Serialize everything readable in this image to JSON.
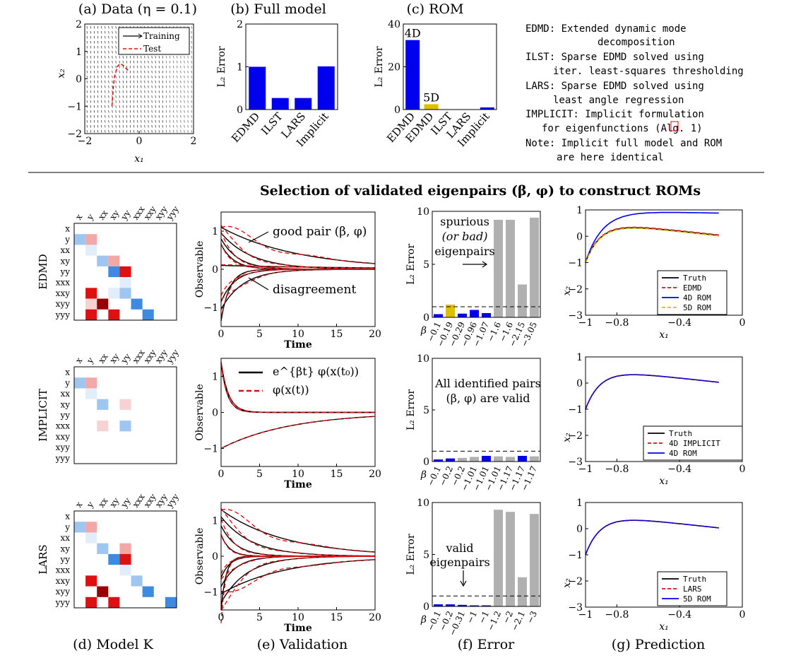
{
  "colors": {
    "blue": "#0000ee",
    "gold": "#dcc000",
    "gray": "#b0b0b0",
    "red": "#dd1111",
    "darkred": "#990000",
    "lightblue": "#9fc6f0",
    "medblue": "#3d8be0",
    "lightred": "#f3a8a8",
    "paleblue": "#e2edfb",
    "palered": "#f7d2d2"
  },
  "top_titles": {
    "a": "(a) Data (η = 0.1)",
    "b": "(b) Full model",
    "c": "(c) ROM"
  },
  "bottom_labels": {
    "d": "(d) Model K",
    "e": "(e) Validation",
    "f": "(f) Error",
    "g": "(g) Prediction"
  },
  "main_title": "Selection of validated eigenpairs (β, φ) to construct ROMs",
  "row_labels": [
    "EDMD",
    "IMPLICIT",
    "LARS"
  ],
  "common_axis": {
    "time": "Time",
    "observable": "Observable",
    "l2_error": "L₂ Error",
    "beta": "β",
    "x1": "x₁",
    "x2": "x₂"
  },
  "legend_text": [
    "EDMD: Extended dynamic mode",
    "decomposition",
    "ILST: Sparse EDMD solved using",
    "iter. least-squares thresholding",
    "LARS: Sparse EDMD solved using",
    "least angle regression",
    "IMPLICIT: Implicit formulation",
    "for eigenfunctions (Alg. 1)",
    "Note: Implicit full model and ROM",
    "are here identical"
  ],
  "chart_data": [
    {
      "id": "a",
      "type": "scatter",
      "title": "(a) Data (η = 0.1)",
      "xlabel": "x₁",
      "ylabel": "x₂",
      "xlim": [
        -2,
        2
      ],
      "ylim": [
        -2,
        2
      ],
      "xticks": [
        "−2",
        "0",
        "2"
      ],
      "yticks": [
        "−2",
        "−1",
        "0",
        "1",
        "2"
      ],
      "legend": [
        "Training",
        "Test"
      ],
      "test_curve": {
        "x": [
          -1.0,
          -0.95,
          -0.9,
          -0.8,
          -0.7,
          -0.6,
          -0.5,
          -0.4
        ],
        "y": [
          -1.0,
          -0.3,
          0.1,
          0.45,
          0.55,
          0.5,
          0.4,
          0.3
        ]
      }
    },
    {
      "id": "b",
      "type": "bar",
      "title": "(b) Full model",
      "ylabel": "L₂ Error",
      "ylim": [
        0,
        2
      ],
      "yticks": [
        "0",
        "1",
        "2"
      ],
      "categories": [
        "EDMD",
        "ILST",
        "LARS",
        "Implicit"
      ],
      "values": [
        1.0,
        0.27,
        0.27,
        1.01
      ]
    },
    {
      "id": "c",
      "type": "bar",
      "title": "(c) ROM",
      "ylabel": "L₂ Error",
      "ylim": [
        0,
        40
      ],
      "yticks": [
        "0",
        "20",
        "40"
      ],
      "categories": [
        "EDMD",
        "EDMD",
        "ILST",
        "LARS",
        "Implicit"
      ],
      "values": [
        32.5,
        2.5,
        0,
        0,
        1.0
      ],
      "bar_labels": [
        "4D",
        "5D",
        "",
        "",
        ""
      ]
    },
    {
      "id": "d1",
      "type": "heatmap",
      "rows": [
        "x",
        "y",
        "xx",
        "xy",
        "yy",
        "xxx",
        "xxy",
        "xyy",
        "yyy"
      ],
      "cols": [
        "x",
        "y",
        "xx",
        "xy",
        "yy",
        "xxx",
        "xxy",
        "xyy",
        "yyy"
      ],
      "cells": [
        [
          1,
          0,
          "lightblue"
        ],
        [
          1,
          1,
          "lightred"
        ],
        [
          2,
          1,
          "paleblue"
        ],
        [
          3,
          2,
          "lightblue"
        ],
        [
          3,
          3,
          "lightred"
        ],
        [
          4,
          3,
          "medblue"
        ],
        [
          4,
          4,
          "red"
        ],
        [
          5,
          4,
          "paleblue"
        ],
        [
          6,
          1,
          "red"
        ],
        [
          6,
          3,
          "paleblue"
        ],
        [
          6,
          4,
          "lightblue"
        ],
        [
          7,
          1,
          "palered"
        ],
        [
          7,
          2,
          "darkred"
        ],
        [
          7,
          5,
          "medblue"
        ],
        [
          8,
          1,
          "red"
        ],
        [
          8,
          3,
          "red"
        ],
        [
          8,
          6,
          "medblue"
        ]
      ]
    },
    {
      "id": "d2",
      "type": "heatmap",
      "rows": [
        "x",
        "y",
        "xx",
        "xy",
        "yy",
        "xxx",
        "xxy",
        "xyy",
        "yyy"
      ],
      "cols": [
        "x",
        "y",
        "xx",
        "xy",
        "yy",
        "xxx",
        "xxy",
        "xyy",
        "yyy"
      ],
      "cells": [
        [
          1,
          0,
          "lightblue"
        ],
        [
          1,
          1,
          "lightred"
        ],
        [
          2,
          1,
          "paleblue"
        ],
        [
          3,
          2,
          "lightblue"
        ],
        [
          3,
          4,
          "palered"
        ],
        [
          5,
          2,
          "palered"
        ],
        [
          5,
          4,
          "lightblue"
        ]
      ]
    },
    {
      "id": "d3",
      "type": "heatmap",
      "rows": [
        "x",
        "y",
        "xx",
        "xy",
        "yy",
        "xxx",
        "xxy",
        "xyy",
        "yyy"
      ],
      "cols": [
        "x",
        "y",
        "xx",
        "xy",
        "yy",
        "xxx",
        "xxy",
        "xyy",
        "yyy"
      ],
      "cells": [
        [
          1,
          0,
          "lightblue"
        ],
        [
          1,
          1,
          "lightred"
        ],
        [
          2,
          1,
          "paleblue"
        ],
        [
          3,
          2,
          "lightblue"
        ],
        [
          3,
          4,
          "lightred"
        ],
        [
          4,
          3,
          "medblue"
        ],
        [
          4,
          4,
          "red"
        ],
        [
          5,
          4,
          "paleblue"
        ],
        [
          6,
          1,
          "red"
        ],
        [
          6,
          5,
          "lightblue"
        ],
        [
          7,
          2,
          "darkred"
        ],
        [
          7,
          6,
          "medblue"
        ],
        [
          8,
          1,
          "red"
        ],
        [
          8,
          3,
          "red"
        ],
        [
          8,
          8,
          "medblue"
        ]
      ]
    },
    {
      "id": "e1",
      "type": "line",
      "xlabel": "Time",
      "ylabel": "Observable",
      "xlim": [
        0,
        20
      ],
      "ylim": [
        -1.5,
        1.5
      ],
      "xticks": [
        "0",
        "5",
        "10",
        "15",
        "20"
      ],
      "yticks": [
        "−1",
        "0",
        "1"
      ],
      "annotations": [
        "good pair (β, φ)",
        "disagreement"
      ]
    },
    {
      "id": "e2",
      "type": "line",
      "xlabel": "Time",
      "ylabel": "Observable",
      "xlim": [
        0,
        20
      ],
      "ylim": [
        -1.5,
        1.5
      ],
      "xticks": [
        "0",
        "5",
        "10",
        "15",
        "20"
      ],
      "yticks": [
        "−1",
        "0",
        "1"
      ],
      "legend": [
        "e^{βt} φ(x(t₀))",
        "φ(x(t))"
      ]
    },
    {
      "id": "e3",
      "type": "line",
      "xlabel": "Time",
      "ylabel": "Observable",
      "xlim": [
        0,
        20
      ],
      "ylim": [
        -1.5,
        1.5
      ],
      "xticks": [
        "0",
        "5",
        "10",
        "15",
        "20"
      ],
      "yticks": [
        "−1",
        "0",
        "1"
      ]
    },
    {
      "id": "f1",
      "type": "bar",
      "ylabel": "L₂ Error",
      "ylim": [
        0,
        10
      ],
      "yticks": [
        "0",
        "5",
        "10"
      ],
      "threshold": 1.0,
      "categories": [
        "−0.1",
        "−0.19",
        "−0.29",
        "−0.96",
        "−1.07",
        "−1.6",
        "−1.6",
        "−2.15",
        "−3.05"
      ],
      "values": [
        0.3,
        1.2,
        0.35,
        0.7,
        0.4,
        9.2,
        9.2,
        3.1,
        9.4
      ],
      "bar_colors": [
        "blue",
        "gold",
        "blue",
        "blue",
        "blue",
        "gray",
        "gray",
        "gray",
        "gray"
      ],
      "annotation": [
        "spurious",
        "(or bad)",
        "eigenpairs"
      ]
    },
    {
      "id": "f2",
      "type": "bar",
      "ylabel": "L₂ Error",
      "ylim": [
        0,
        10
      ],
      "yticks": [
        "0",
        "5",
        "10"
      ],
      "threshold": 1.0,
      "categories": [
        "−0.1",
        "−0.2",
        "−0.2",
        "−1.01",
        "−1.01",
        "−1.01",
        "−1.17",
        "−1.17",
        "−1.17"
      ],
      "values": [
        0.2,
        0.3,
        0.35,
        0.45,
        0.55,
        0.5,
        0.45,
        0.55,
        0.5
      ],
      "bar_colors": [
        "blue",
        "blue",
        "gray",
        "gray",
        "blue",
        "gray",
        "gray",
        "blue",
        "gray"
      ],
      "annotation": [
        "All identified pairs",
        "(β, φ) are valid"
      ]
    },
    {
      "id": "f3",
      "type": "bar",
      "ylabel": "L₂ Error",
      "ylim": [
        0,
        10
      ],
      "yticks": [
        "0",
        "5",
        "10"
      ],
      "threshold": 1.0,
      "categories": [
        "−0.1",
        "−0.2",
        "−0.31",
        "−1",
        "−1",
        "−1.2",
        "−2",
        "−2.1",
        "−3"
      ],
      "values": [
        0.2,
        0.2,
        0.15,
        0.1,
        0.1,
        9.3,
        9.1,
        2.8,
        8.9
      ],
      "bar_colors": [
        "blue",
        "blue",
        "blue",
        "blue",
        "blue",
        "gray",
        "gray",
        "gray",
        "gray"
      ],
      "annotation": [
        "valid",
        "eigenpairs"
      ]
    },
    {
      "id": "g1",
      "type": "line",
      "xlabel": "x₁",
      "ylabel": "x₂",
      "xlim": [
        -1,
        0
      ],
      "ylim": [
        -3,
        1
      ],
      "xticks": [
        "−1",
        "−0.8",
        "−0.4",
        "0"
      ],
      "yticks": [
        "−3",
        "−2",
        "−1",
        "0",
        "1"
      ],
      "legend": [
        "Truth",
        "EDMD",
        "4D ROM",
        "5D ROM"
      ]
    },
    {
      "id": "g2",
      "type": "line",
      "xlabel": "x₁",
      "ylabel": "x₂",
      "xlim": [
        -1,
        0
      ],
      "ylim": [
        -3,
        1
      ],
      "xticks": [
        "−1",
        "−0.8",
        "−0.4",
        "0"
      ],
      "yticks": [
        "−3",
        "−2",
        "−1",
        "0",
        "1"
      ],
      "legend": [
        "Truth",
        "4D IMPLICIT",
        "4D ROM"
      ]
    },
    {
      "id": "g3",
      "type": "line",
      "xlabel": "x₁",
      "ylabel": "x₂",
      "xlim": [
        -1,
        0
      ],
      "ylim": [
        -3,
        1
      ],
      "xticks": [
        "−1",
        "−0.8",
        "−0.4",
        "0"
      ],
      "yticks": [
        "−3",
        "−2",
        "−1",
        "0",
        "1"
      ],
      "legend": [
        "Truth",
        "LARS",
        "5D ROM"
      ]
    }
  ]
}
